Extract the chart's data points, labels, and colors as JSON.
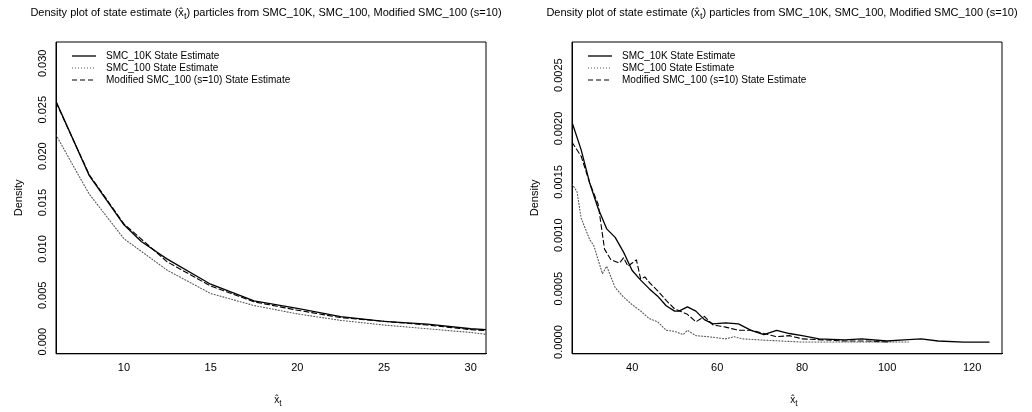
{
  "chart_data": [
    {
      "type": "line",
      "title": "Density plot of state estimate (x̂$_{t}$) particles from SMC_10K, SMC_100, Modified SMC_100 (s=10)",
      "xlabel": "x̂$_{t}$",
      "ylabel": "Density",
      "xlim": [
        6.08,
        30.88
      ],
      "ylim": [
        -0.0013,
        0.0323
      ],
      "xticks": [
        10,
        15,
        20,
        25,
        30
      ],
      "yticks": [
        {
          "value": 0,
          "label": "0.000"
        },
        {
          "value": 0.005,
          "label": "0.005"
        },
        {
          "value": 0.01,
          "label": "0.010"
        },
        {
          "value": 0.015,
          "label": "0.015"
        },
        {
          "value": 0.02,
          "label": "0.020"
        },
        {
          "value": 0.025,
          "label": "0.025"
        },
        {
          "value": 0.03,
          "label": "0.030"
        }
      ],
      "grid": false,
      "legend": "top left",
      "marker": "none",
      "series": [
        {
          "name": "SMC_10K State Estimate",
          "color": "#000000",
          "line_style": "solid",
          "x": [
            6.08,
            8,
            10,
            11,
            12.5,
            15,
            17.5,
            20,
            22.5,
            25,
            27.5,
            30,
            30.88
          ],
          "values": [
            0.0259,
            0.0179,
            0.0126,
            0.0108,
            0.0089,
            0.0062,
            0.0044,
            0.0036,
            0.0027,
            0.0022,
            0.0019,
            0.0014,
            0.0013
          ]
        },
        {
          "name": "SMC_100 State Estimate",
          "color": "#555555",
          "line_style": "dotted",
          "x": [
            6.08,
            7,
            8,
            10,
            12.5,
            15,
            17.5,
            20,
            22.5,
            25,
            27.5,
            30,
            30.88
          ],
          "values": [
            0.0223,
            0.0192,
            0.0159,
            0.0111,
            0.0077,
            0.0052,
            0.0039,
            0.003,
            0.0023,
            0.0018,
            0.0014,
            0.001,
            0.0008
          ]
        },
        {
          "name": "Modified SMC_100 (s=10) State Estimate",
          "color": "#000000",
          "line_style": "dashed",
          "x": [
            6.08,
            8,
            10,
            12.5,
            15,
            17.5,
            20,
            22.5,
            25,
            27.5,
            30,
            30.88
          ],
          "values": [
            0.0258,
            0.018,
            0.0127,
            0.0086,
            0.006,
            0.0043,
            0.0034,
            0.0026,
            0.0022,
            0.0018,
            0.0013,
            0.0012
          ]
        }
      ]
    },
    {
      "type": "line",
      "title": "Density plot of state estimate (x̂$_{t}$) particles from SMC_10K, SMC_100, Modified SMC_100 (s=10)",
      "xlabel": "x̂$_{t}$",
      "ylabel": "Density",
      "xlim": [
        25.84,
        127.04
      ],
      "ylim": [
        -0.00011,
        0.00281
      ],
      "xticks": [
        40,
        60,
        80,
        100,
        120
      ],
      "yticks": [
        {
          "value": 0,
          "label": "0.0000"
        },
        {
          "value": 0.0005,
          "label": "0.0005"
        },
        {
          "value": 0.001,
          "label": "0.0010"
        },
        {
          "value": 0.0015,
          "label": "0.0015"
        },
        {
          "value": 0.002,
          "label": "0.0020"
        },
        {
          "value": 0.0025,
          "label": "0.0025"
        }
      ],
      "grid": false,
      "legend": "top left",
      "marker": "none",
      "series": [
        {
          "name": "SMC_10K State Estimate",
          "color": "#000000",
          "line_style": "solid",
          "x": [
            25.84,
            28,
            30,
            32,
            34,
            36,
            38,
            40,
            42,
            44,
            46,
            48,
            50,
            51,
            53,
            55,
            57,
            59,
            62,
            65,
            68,
            71,
            74,
            77,
            80,
            84,
            90,
            94,
            100,
            104,
            108,
            112,
            118,
            124
          ],
          "values": [
            0.00206,
            0.0018,
            0.00149,
            0.00125,
            0.00106,
            0.00098,
            0.00084,
            0.00067,
            0.00058,
            0.0005,
            0.00043,
            0.00034,
            0.00029,
            0.00029,
            0.00033,
            0.00029,
            0.00021,
            0.00017,
            0.00018,
            0.00017,
            0.00011,
            7e-05,
            0.00011,
            8e-05,
            6e-05,
            3e-05,
            2e-05,
            3e-05,
            1e-05,
            2e-05,
            3e-05,
            1e-05,
            0,
            0
          ]
        },
        {
          "name": "SMC_100 State Estimate",
          "color": "#555555",
          "line_style": "dotted",
          "x": [
            25.84,
            27,
            28,
            30,
            31,
            33,
            34,
            36,
            38,
            40,
            42,
            44,
            46,
            48,
            50,
            52,
            53,
            55,
            58,
            60,
            62,
            64,
            66,
            70,
            75,
            80,
            90,
            105
          ],
          "values": [
            0.00148,
            0.00141,
            0.00116,
            0.00096,
            0.0009,
            0.00064,
            0.00071,
            0.00051,
            0.00042,
            0.00035,
            0.00029,
            0.00022,
            0.00019,
            0.00011,
            0.0001,
            7e-05,
            0.00011,
            6e-05,
            5e-05,
            4e-05,
            3e-05,
            5e-05,
            3e-05,
            2e-05,
            1e-05,
            0,
            0,
            0
          ]
        },
        {
          "name": "Modified SMC_100 (s=10) State Estimate",
          "color": "#000000",
          "line_style": "dashed",
          "x": [
            25.84,
            28,
            30,
            32,
            33.5,
            35,
            37,
            38,
            39,
            41,
            42,
            43,
            44,
            46,
            48,
            50,
            53,
            55,
            57,
            59,
            62,
            65,
            68,
            71,
            74,
            77,
            80,
            85,
            90,
            95,
            100
          ],
          "values": [
            0.00187,
            0.00174,
            0.00149,
            0.00129,
            0.00087,
            0.00077,
            0.00074,
            0.00079,
            0.00071,
            0.00077,
            0.00059,
            0.00061,
            0.00056,
            0.00048,
            0.00039,
            0.00031,
            0.00026,
            0.00019,
            0.00024,
            0.00016,
            0.00014,
            0.00011,
            0.00011,
            8e-05,
            5e-05,
            6e-05,
            3e-05,
            2e-05,
            1e-05,
            1e-05,
            0
          ]
        }
      ]
    }
  ]
}
